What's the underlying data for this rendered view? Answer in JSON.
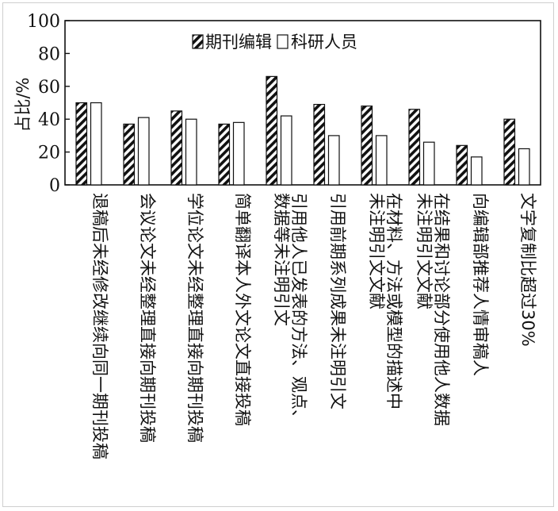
{
  "chart_data": {
    "type": "bar",
    "title": "",
    "xlabel": "",
    "ylabel": "占比/%",
    "ylim": [
      0,
      100
    ],
    "yticks": [
      0,
      20,
      40,
      60,
      80,
      100
    ],
    "grid": false,
    "legend_position": "top-center",
    "categories": [
      "退稿后未经修改继续向同一期刊投稿",
      "会议论文未经整理直接向期刊投稿",
      "学位论文未经整理直接向期刊投稿",
      "简单翻译本人外文论文直接投稿",
      "引用他人已发表的方法、观点、数据等未注明引文",
      "引用前期系列成果未注明引文",
      "在材料、方法或模型的描述中未注明引文文献",
      "在结果和讨论部分使用他人数据未注明引文文献",
      "向编辑部推荐人情审稿人",
      "文字复制比超过30%"
    ],
    "category_lines": [
      [
        "退稿后未经修改继续向同一期刊投稿"
      ],
      [
        "会议论文未经整理直接向期刊投稿"
      ],
      [
        "学位论文未经整理直接向期刊投稿"
      ],
      [
        "简单翻译本人外文论文直接投稿"
      ],
      [
        "引用他人已发表的方法、观点、",
        "数据等未注明引文"
      ],
      [
        "引用前期系列成果未注明引文"
      ],
      [
        "在材料、方法或模型的描述中",
        "未注明引文文献"
      ],
      [
        "在结果和讨论部分使用他人数据",
        "未注明引文文献"
      ],
      [
        "向编辑部推荐人情审稿人"
      ],
      [
        "文字复制比超过30%"
      ]
    ],
    "series": [
      {
        "name": "期刊编辑",
        "pattern": "diagonal-hatch",
        "values": [
          50,
          37,
          45,
          37,
          66,
          49,
          48,
          46,
          24,
          40
        ]
      },
      {
        "name": "科研人员",
        "pattern": "white",
        "values": [
          50,
          41,
          40,
          38,
          42,
          30,
          30,
          26,
          17,
          22
        ]
      }
    ]
  }
}
